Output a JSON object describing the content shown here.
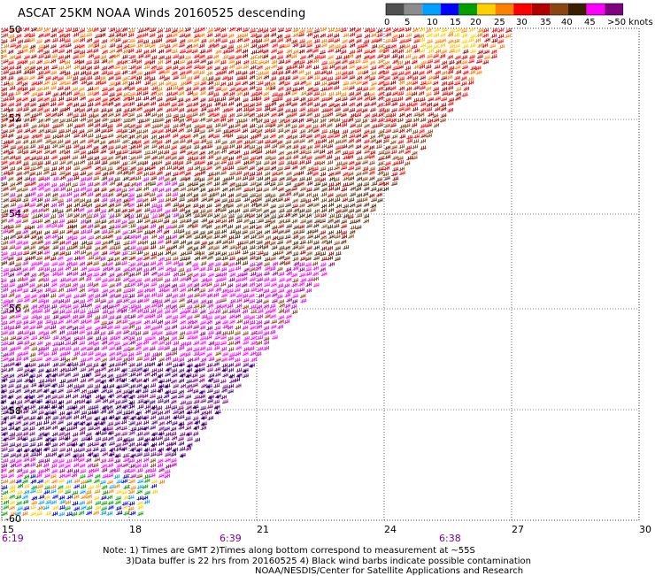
{
  "title": "ASCAT 25KM NOAA Winds 20160525 descending",
  "legend": {
    "labels": [
      "0",
      "5",
      "10",
      "15",
      "20",
      "25",
      "30",
      "35",
      "40",
      "45",
      ">50 knots"
    ],
    "colors": [
      "#505050",
      "#8c8c8c",
      "#00a0ff",
      "#0000ff",
      "#00a000",
      "#ffd000",
      "#ff8000",
      "#ff0000",
      "#b00000",
      "#8b4513",
      "#3a1e00",
      "#ff00ff",
      "#800080"
    ]
  },
  "map": {
    "x_ticks": [
      "15",
      "18",
      "21",
      "24",
      "27",
      "30"
    ],
    "y_ticks": [
      "-50",
      "-52",
      "-54",
      "-56",
      "-58",
      "-60"
    ],
    "times": [
      "6:19",
      "6:39",
      "6:38"
    ]
  },
  "notes": {
    "line1": "Note: 1) Times are GMT 2)Times along bottom correspond to measurement at ~55S",
    "line2": "3)Data buffer is 22 hrs from 20160525 4) Black wind barbs indicate possible contamination",
    "line3": "NOAA/NESDIS/Center for Satellite Applications and Research"
  }
}
